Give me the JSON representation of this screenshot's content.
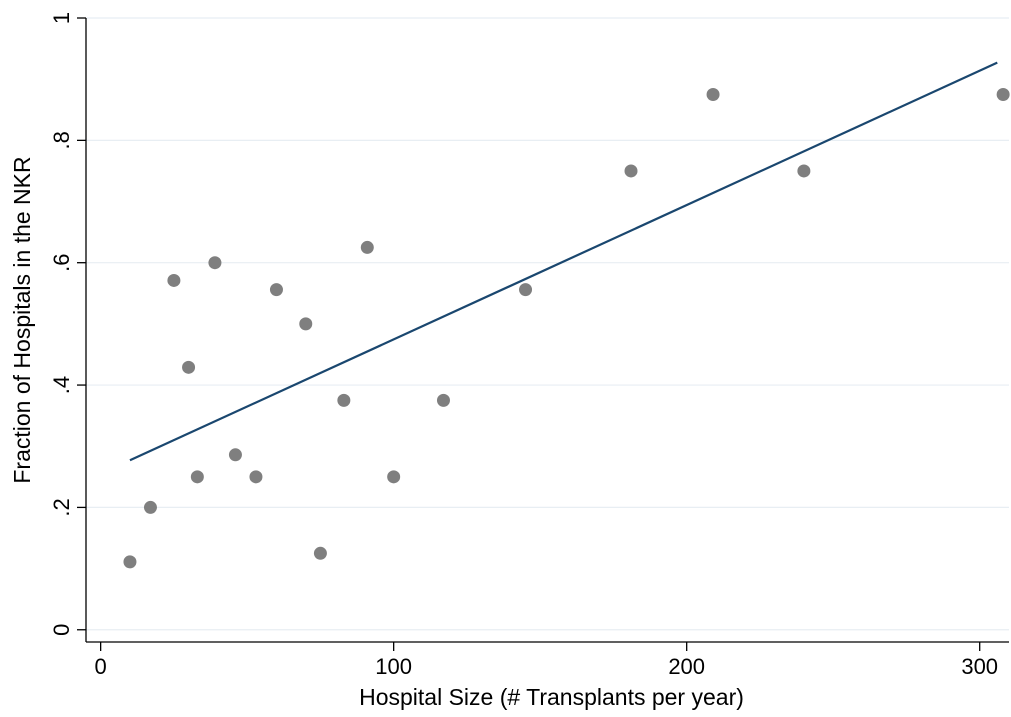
{
  "chart_data": {
    "type": "scatter",
    "xlabel": "Hospital Size (# Transplants per year)",
    "ylabel": "Fraction of Hospitals in the NKR",
    "xlim": [
      -5,
      310
    ],
    "ylim": [
      -0.02,
      1.0
    ],
    "x_ticks": [
      0,
      100,
      200,
      300
    ],
    "x_tick_labels": [
      "0",
      "100",
      "200",
      "300"
    ],
    "y_ticks": [
      0,
      0.2,
      0.4,
      0.6,
      0.8,
      1
    ],
    "y_tick_labels": [
      "0",
      ".2",
      ".4",
      ".6",
      ".8",
      "1"
    ],
    "grid": true,
    "points_color": "#7f7f7f",
    "fit_line_color": "#1a476f",
    "points": [
      {
        "x": 10,
        "y": 0.111
      },
      {
        "x": 17,
        "y": 0.2
      },
      {
        "x": 25,
        "y": 0.571
      },
      {
        "x": 30,
        "y": 0.429
      },
      {
        "x": 33,
        "y": 0.25
      },
      {
        "x": 39,
        "y": 0.6
      },
      {
        "x": 46,
        "y": 0.286
      },
      {
        "x": 53,
        "y": 0.25
      },
      {
        "x": 60,
        "y": 0.556
      },
      {
        "x": 70,
        "y": 0.5
      },
      {
        "x": 75,
        "y": 0.125
      },
      {
        "x": 83,
        "y": 0.375
      },
      {
        "x": 91,
        "y": 0.625
      },
      {
        "x": 100,
        "y": 0.25
      },
      {
        "x": 117,
        "y": 0.375
      },
      {
        "x": 145,
        "y": 0.556
      },
      {
        "x": 181,
        "y": 0.75
      },
      {
        "x": 209,
        "y": 0.875
      },
      {
        "x": 240,
        "y": 0.75
      },
      {
        "x": 308,
        "y": 0.875
      }
    ],
    "fit_line": {
      "x": [
        10,
        306
      ],
      "y": [
        0.277,
        0.927
      ]
    }
  }
}
